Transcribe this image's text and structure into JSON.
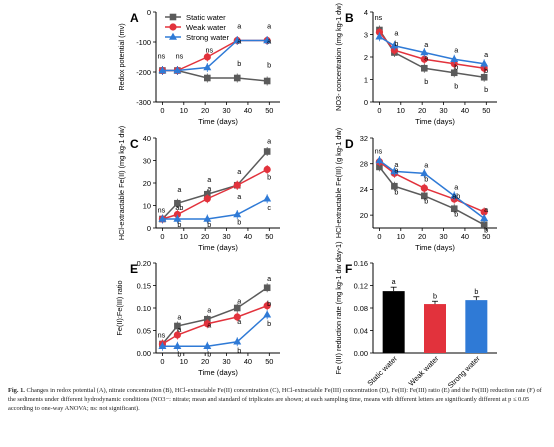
{
  "colors": {
    "static": "#5b5b5b",
    "weak": "#e2323c",
    "strong": "#2f7ad6"
  },
  "legend": [
    "Static water",
    "Weak water",
    "Strong water"
  ],
  "caption": {
    "label": "Fig. 1.",
    "text": "Changes in redox potential (A), nitrate concentration (B), HCl-extractable Fe(II) concentration (C), HCl-extractable Fe(III) concentration (D), Fe(II): Fe(III) ratio (E) and the Fe(III) reduction rate (F) of the sediments under different hydrodynamic conditions (NO3−: nitrate; mean and standard of triplicates are shown; at each sampling time, means with different letters are significantly different at p ≤ 0.05 according to one-way ANOVA; ns: not significant)."
  },
  "chart_data": [
    {
      "panel": "A",
      "type": "line",
      "xlabel": "Time (days)",
      "ylabel": "Redox potential (mv)",
      "xlim": [
        -3,
        55
      ],
      "xticks": [
        0,
        10,
        20,
        30,
        40,
        50
      ],
      "ylim": [
        -300,
        0
      ],
      "yticks": [
        -300,
        -200,
        -100,
        0
      ],
      "x": [
        0,
        7,
        21,
        35,
        49
      ],
      "series": [
        {
          "name": "Static water",
          "values": [
            -195,
            -195,
            -220,
            -220,
            -230
          ]
        },
        {
          "name": "Weak water",
          "values": [
            -195,
            -195,
            -150,
            -95,
            -95
          ]
        },
        {
          "name": "Strong water",
          "values": [
            -195,
            -195,
            -185,
            -95,
            -95
          ]
        }
      ],
      "labels": [
        {
          "x": 0,
          "y": -155,
          "text": "ns"
        },
        {
          "x": 7,
          "y": -155,
          "text": "ns"
        },
        {
          "x": 21,
          "y": -135,
          "text": "ns"
        },
        {
          "x": 35,
          "y": -55,
          "text": "a"
        },
        {
          "x": 35,
          "y": -105,
          "text": "a"
        },
        {
          "x": 35,
          "y": -180,
          "text": "b"
        },
        {
          "x": 49,
          "y": -55,
          "text": "a"
        },
        {
          "x": 49,
          "y": -105,
          "text": "a"
        },
        {
          "x": 49,
          "y": -185,
          "text": "b"
        }
      ]
    },
    {
      "panel": "B",
      "type": "line",
      "xlabel": "Time (days)",
      "ylabel": "NO3- concentration (mg kg-1 dw)",
      "xlim": [
        -3,
        55
      ],
      "xticks": [
        0,
        10,
        20,
        30,
        40,
        50
      ],
      "ylim": [
        0,
        4
      ],
      "yticks": [
        0,
        1,
        2,
        3,
        4
      ],
      "x": [
        0,
        7,
        21,
        35,
        49
      ],
      "series": [
        {
          "name": "Static water",
          "values": [
            3.2,
            2.2,
            1.5,
            1.3,
            1.1
          ]
        },
        {
          "name": "Weak water",
          "values": [
            3.1,
            2.3,
            1.9,
            1.7,
            1.5
          ]
        },
        {
          "name": "Strong water",
          "values": [
            2.9,
            2.5,
            2.2,
            1.9,
            1.7
          ]
        }
      ],
      "labels": [
        {
          "x": 0,
          "y": 3.65,
          "text": "ns"
        },
        {
          "x": 7,
          "y": 2.95,
          "text": "a"
        },
        {
          "x": 7,
          "y": 2.5,
          "text": "b"
        },
        {
          "x": 21,
          "y": 2.45,
          "text": "a"
        },
        {
          "x": 21,
          "y": 1.85,
          "text": "a"
        },
        {
          "x": 21,
          "y": 0.8,
          "text": "b"
        },
        {
          "x": 35,
          "y": 2.2,
          "text": "a"
        },
        {
          "x": 35,
          "y": 1.45,
          "text": "b"
        },
        {
          "x": 35,
          "y": 0.6,
          "text": "b"
        },
        {
          "x": 49,
          "y": 2.0,
          "text": "a"
        },
        {
          "x": 49,
          "y": 1.3,
          "text": "b"
        },
        {
          "x": 49,
          "y": 0.45,
          "text": "b"
        }
      ]
    },
    {
      "panel": "C",
      "type": "line",
      "xlabel": "Time (days)",
      "ylabel": "HCl-extractable Fe(II) (mg kg-1 dw)",
      "xlim": [
        -3,
        55
      ],
      "xticks": [
        0,
        10,
        20,
        30,
        40,
        50
      ],
      "ylim": [
        0,
        40
      ],
      "yticks": [
        0,
        10,
        20,
        30,
        40
      ],
      "x": [
        0,
        7,
        21,
        35,
        49
      ],
      "series": [
        {
          "name": "Static water",
          "values": [
            4,
            11,
            15,
            19,
            34
          ]
        },
        {
          "name": "Weak water",
          "values": [
            4,
            6,
            13,
            19,
            26
          ]
        },
        {
          "name": "Strong water",
          "values": [
            4,
            4,
            4,
            6,
            13
          ]
        }
      ],
      "labels": [
        {
          "x": 0,
          "y": 7,
          "text": "ns"
        },
        {
          "x": 7,
          "y": 16,
          "text": "a"
        },
        {
          "x": 7,
          "y": 8,
          "text": "ab"
        },
        {
          "x": 7,
          "y": 0.5,
          "text": "b"
        },
        {
          "x": 21,
          "y": 20.5,
          "text": "a"
        },
        {
          "x": 21,
          "y": 16.5,
          "text": "a"
        },
        {
          "x": 21,
          "y": 0.5,
          "text": "b"
        },
        {
          "x": 35,
          "y": 24,
          "text": "a"
        },
        {
          "x": 35,
          "y": 13,
          "text": "a"
        },
        {
          "x": 35,
          "y": 1.5,
          "text": "b"
        },
        {
          "x": 49,
          "y": 37.5,
          "text": "a"
        },
        {
          "x": 49,
          "y": 21.5,
          "text": "b"
        },
        {
          "x": 49,
          "y": 8,
          "text": "c"
        }
      ]
    },
    {
      "panel": "D",
      "type": "line",
      "xlabel": "Time (days)",
      "ylabel": "HCl-extractable Fe(III) (g kg-1 dw)",
      "xlim": [
        -3,
        55
      ],
      "xticks": [
        0,
        10,
        20,
        30,
        40,
        50
      ],
      "ylim": [
        18,
        32
      ],
      "yticks": [
        20,
        24,
        28,
        32
      ],
      "x": [
        0,
        7,
        21,
        35,
        49
      ],
      "series": [
        {
          "name": "Static water",
          "values": [
            27.5,
            24.5,
            23,
            21,
            18.5
          ]
        },
        {
          "name": "Weak water",
          "values": [
            28.3,
            26.5,
            24.2,
            22.5,
            20.5
          ]
        },
        {
          "name": "Strong water",
          "values": [
            28.5,
            26.8,
            26.5,
            23,
            19.5
          ]
        }
      ],
      "labels": [
        {
          "x": 0,
          "y": 29.6,
          "text": "ns"
        },
        {
          "x": 7,
          "y": 27.5,
          "text": "a"
        },
        {
          "x": 7,
          "y": 26.6,
          "text": "a"
        },
        {
          "x": 7,
          "y": 23.2,
          "text": "b"
        },
        {
          "x": 21,
          "y": 27.4,
          "text": "a"
        },
        {
          "x": 21,
          "y": 25.2,
          "text": "b"
        },
        {
          "x": 21,
          "y": 21.8,
          "text": "b"
        },
        {
          "x": 35,
          "y": 24,
          "text": "a"
        },
        {
          "x": 35,
          "y": 22.6,
          "text": "ab"
        },
        {
          "x": 35,
          "y": 19.8,
          "text": "b"
        },
        {
          "x": 49,
          "y": 20.5,
          "text": "a"
        },
        {
          "x": 49,
          "y": 17.3,
          "text": "b"
        }
      ]
    },
    {
      "panel": "E",
      "type": "line",
      "xlabel": "Time (days)",
      "ylabel": "Fe(II):Fe(III) ratio",
      "xlim": [
        -3,
        55
      ],
      "xticks": [
        0,
        10,
        20,
        30,
        40,
        50
      ],
      "ylim": [
        0,
        0.2
      ],
      "yticks": [
        0,
        0.05,
        0.1,
        0.15,
        0.2
      ],
      "x": [
        0,
        7,
        21,
        35,
        49
      ],
      "series": [
        {
          "name": "Static water",
          "values": [
            0.02,
            0.06,
            0.075,
            0.1,
            0.145
          ]
        },
        {
          "name": "Weak water",
          "values": [
            0.02,
            0.04,
            0.065,
            0.08,
            0.105
          ]
        },
        {
          "name": "Strong water",
          "values": [
            0.015,
            0.015,
            0.015,
            0.025,
            0.085
          ]
        }
      ],
      "labels": [
        {
          "x": 0,
          "y": 0.035,
          "text": "ns"
        },
        {
          "x": 7,
          "y": 0.075,
          "text": "a"
        },
        {
          "x": 7,
          "y": 0.047,
          "text": "a"
        },
        {
          "x": 7,
          "y": -0.008,
          "text": "b"
        },
        {
          "x": 21,
          "y": 0.09,
          "text": "a"
        },
        {
          "x": 21,
          "y": 0.057,
          "text": "a"
        },
        {
          "x": 21,
          "y": -0.008,
          "text": "b"
        },
        {
          "x": 35,
          "y": 0.11,
          "text": "a"
        },
        {
          "x": 35,
          "y": 0.065,
          "text": "a"
        },
        {
          "x": 35,
          "y": 0.0,
          "text": "b"
        },
        {
          "x": 49,
          "y": 0.16,
          "text": "a"
        },
        {
          "x": 49,
          "y": 0.105,
          "text": "b"
        },
        {
          "x": 49,
          "y": 0.06,
          "text": "b"
        }
      ]
    },
    {
      "panel": "F",
      "type": "bar",
      "ylabel": "Fe (III) reduction rate (mg kg-1 dw day-1)",
      "ylim": [
        0,
        0.16
      ],
      "yticks": [
        0,
        0.04,
        0.08,
        0.12,
        0.16
      ],
      "categories": [
        "Static water",
        "Weak water",
        "Strong water"
      ],
      "values": [
        0.11,
        0.087,
        0.094
      ],
      "errors": [
        0.007,
        0.005,
        0.006
      ],
      "letters": [
        "a",
        "b",
        "b"
      ]
    }
  ]
}
